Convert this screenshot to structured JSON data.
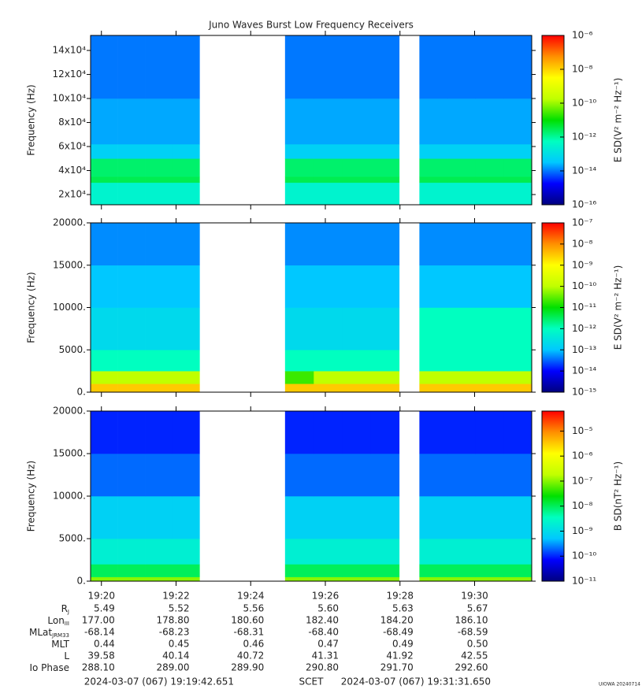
{
  "chart_data": {
    "type": "spectrogram",
    "title": "Juno Waves Burst Low Frequency Receivers",
    "colormap": [
      "#00007f",
      "#0000ff",
      "#00c8ff",
      "#00ffc0",
      "#00e000",
      "#c0ff00",
      "#ffff00",
      "#ff9000",
      "#ff0000"
    ],
    "xlim": [
      1179.71,
      1191.53
    ],
    "xticks": [
      {
        "value": 1180,
        "label": "19:20"
      },
      {
        "value": 1182,
        "label": "19:22"
      },
      {
        "value": 1184,
        "label": "19:24"
      },
      {
        "value": 1186,
        "label": "19:26"
      },
      {
        "value": 1188,
        "label": "19:28"
      },
      {
        "value": 1190,
        "label": "19:30"
      }
    ],
    "x_bins": [
      1179.71,
      1180.44,
      1181.17,
      1181.9,
      1182.63,
      1184.92,
      1185.69,
      1186.45,
      1187.22,
      1187.98,
      1188.52,
      1189.27,
      1190.02,
      1190.78,
      1191.53
    ],
    "panels": [
      {
        "ylabel": "Frequency (Hz)",
        "ylim": [
          11500,
          152500
        ],
        "yticks": [
          {
            "value": 20000,
            "label": "2x10⁴"
          },
          {
            "value": 40000,
            "label": "4x10⁴"
          },
          {
            "value": 60000,
            "label": "6x10⁴"
          },
          {
            "value": 80000,
            "label": "8x10⁴"
          },
          {
            "value": 100000,
            "label": "10x10⁴"
          },
          {
            "value": 120000,
            "label": "12x10⁴"
          },
          {
            "value": 140000,
            "label": "14x10⁴"
          }
        ],
        "y_bins": [
          11500,
          30000,
          35000,
          50000,
          62000,
          100000,
          152500
        ],
        "z": [
          [
            3e-13,
            3e-13,
            3e-13,
            3e-13,
            null,
            3e-13,
            3e-13,
            3e-13,
            3e-13,
            null,
            3e-13,
            3e-13,
            3e-13,
            3e-13
          ],
          [
            3e-12,
            3e-12,
            3e-12,
            3e-12,
            null,
            3e-12,
            3e-12,
            3e-12,
            3e-12,
            null,
            3e-12,
            3e-12,
            3e-12,
            3e-12
          ],
          [
            2e-12,
            2e-12,
            2e-12,
            2e-12,
            null,
            2e-12,
            2e-12,
            2e-12,
            2e-12,
            null,
            2e-12,
            2e-12,
            2e-12,
            2e-12
          ],
          [
            5e-14,
            5e-14,
            5e-14,
            5e-14,
            null,
            5e-14,
            5e-14,
            5e-14,
            5e-14,
            null,
            5e-14,
            5e-14,
            5e-14,
            5e-14
          ],
          [
            2e-14,
            2e-14,
            2e-14,
            2e-14,
            null,
            2e-14,
            2e-14,
            2e-14,
            2e-14,
            null,
            2e-14,
            2e-14,
            2e-14,
            2e-14
          ],
          [
            1e-14,
            1e-14,
            1e-14,
            1e-14,
            null,
            1e-14,
            1e-14,
            1e-14,
            1e-14,
            null,
            1e-14,
            1e-14,
            1e-14,
            1e-14
          ]
        ],
        "clim": [
          1e-16,
          1e-06
        ],
        "cticks": [
          {
            "value": 1e-06,
            "label": "10⁻⁶"
          },
          {
            "value": 1e-08,
            "label": "10⁻⁸"
          },
          {
            "value": 1e-10,
            "label": "10⁻¹⁰"
          },
          {
            "value": 1e-12,
            "label": "10⁻¹²"
          },
          {
            "value": 1e-14,
            "label": "10⁻¹⁴"
          },
          {
            "value": 1e-16,
            "label": "10⁻¹⁶"
          }
        ],
        "clabel": "E SD(V² m⁻² Hz⁻¹)"
      },
      {
        "ylabel": "Frequency (Hz)",
        "ylim": [
          0,
          20000
        ],
        "yticks": [
          {
            "value": 0,
            "label": "0."
          },
          {
            "value": 5000,
            "label": "5000."
          },
          {
            "value": 10000,
            "label": "10000."
          },
          {
            "value": 15000,
            "label": "15000."
          },
          {
            "value": 20000,
            "label": "20000."
          }
        ],
        "y_bins": [
          0,
          1000,
          2500,
          5000,
          10000,
          15000,
          20000
        ],
        "z": [
          [
            3e-09,
            3e-09,
            3e-09,
            3e-09,
            null,
            3e-09,
            3e-09,
            3e-09,
            3e-09,
            null,
            3e-09,
            3e-09,
            3e-09,
            3e-09
          ],
          [
            1e-10,
            1e-10,
            1e-10,
            1e-10,
            null,
            2e-11,
            1e-10,
            1e-10,
            1e-10,
            null,
            1e-10,
            1e-10,
            1e-10,
            1e-10
          ],
          [
            1e-12,
            1e-12,
            1e-12,
            1e-12,
            null,
            1e-12,
            1e-12,
            1e-12,
            1e-12,
            null,
            1e-12,
            1e-12,
            1e-12,
            1e-12
          ],
          [
            2e-13,
            2e-13,
            2e-13,
            2e-13,
            null,
            2e-13,
            2e-13,
            2e-13,
            2e-13,
            null,
            1e-12,
            1e-12,
            1e-12,
            1e-12
          ],
          [
            1e-13,
            1e-13,
            1e-13,
            1e-13,
            null,
            1e-13,
            1e-13,
            1e-13,
            1e-13,
            null,
            1e-13,
            1e-13,
            1e-13,
            1e-13
          ],
          [
            5e-14,
            5e-14,
            5e-14,
            5e-14,
            null,
            5e-14,
            5e-14,
            5e-14,
            5e-14,
            null,
            5e-14,
            5e-14,
            5e-14,
            5e-14
          ]
        ],
        "clim": [
          1e-15,
          1e-07
        ],
        "cticks": [
          {
            "value": 1e-07,
            "label": "10⁻⁷"
          },
          {
            "value": 1e-08,
            "label": "10⁻⁸"
          },
          {
            "value": 1e-09,
            "label": "10⁻⁹"
          },
          {
            "value": 1e-10,
            "label": "10⁻¹⁰"
          },
          {
            "value": 1e-11,
            "label": "10⁻¹¹"
          },
          {
            "value": 1e-12,
            "label": "10⁻¹²"
          },
          {
            "value": 1e-13,
            "label": "10⁻¹³"
          },
          {
            "value": 1e-14,
            "label": "10⁻¹⁴"
          },
          {
            "value": 1e-15,
            "label": "10⁻¹⁵"
          }
        ],
        "clabel": "E SD(V² m⁻² Hz⁻¹)"
      },
      {
        "ylabel": "Frequency (Hz)",
        "ylim": [
          0,
          20000
        ],
        "yticks": [
          {
            "value": 0,
            "label": "0."
          },
          {
            "value": 5000,
            "label": "5000."
          },
          {
            "value": 10000,
            "label": "10000."
          },
          {
            "value": 15000,
            "label": "15000."
          },
          {
            "value": 20000,
            "label": "20000."
          }
        ],
        "y_bins": [
          0,
          500,
          2000,
          5000,
          10000,
          15000,
          20000
        ],
        "z": [
          [
            1e-07,
            1e-07,
            1e-07,
            1e-07,
            null,
            1e-07,
            1e-07,
            1e-07,
            1e-07,
            null,
            1e-07,
            1e-07,
            1e-07,
            1e-07
          ],
          [
            1e-08,
            1e-08,
            1e-08,
            1e-08,
            null,
            1e-08,
            1e-08,
            1e-08,
            1e-08,
            null,
            1e-08,
            1e-08,
            1e-08,
            1e-08
          ],
          [
            2e-09,
            2e-09,
            2e-09,
            2e-09,
            null,
            2e-09,
            2e-09,
            2e-09,
            2e-09,
            null,
            2e-09,
            2e-09,
            2e-09,
            2e-09
          ],
          [
            7e-10,
            7e-10,
            7e-10,
            7e-10,
            null,
            7e-10,
            7e-10,
            7e-10,
            7e-10,
            null,
            7e-10,
            7e-10,
            7e-10,
            7e-10
          ],
          [
            2e-10,
            2e-10,
            2e-10,
            2e-10,
            null,
            2e-10,
            2e-10,
            2e-10,
            2e-10,
            null,
            2e-10,
            2e-10,
            2e-10,
            2e-10
          ],
          [
            1e-10,
            1e-10,
            1e-10,
            1e-10,
            null,
            1e-10,
            1e-10,
            1e-10,
            1e-10,
            null,
            1e-10,
            1e-10,
            1e-10,
            1e-10
          ]
        ],
        "clim": [
          1e-11,
          6.3e-05
        ],
        "cticks": [
          {
            "value": 1e-05,
            "label": "10⁻⁵"
          },
          {
            "value": 1e-06,
            "label": "10⁻⁶"
          },
          {
            "value": 1e-07,
            "label": "10⁻⁷"
          },
          {
            "value": 1e-08,
            "label": "10⁻⁸"
          },
          {
            "value": 1e-09,
            "label": "10⁻⁹"
          },
          {
            "value": 1e-10,
            "label": "10⁻¹⁰"
          },
          {
            "value": 1e-11,
            "label": "10⁻¹¹"
          }
        ],
        "clabel": "B SD(nT² Hz⁻¹)"
      }
    ],
    "ephemeris": [
      {
        "label": "R",
        "sub": "J",
        "values": [
          "5.49",
          "5.52",
          "5.56",
          "5.60",
          "5.63",
          "5.67"
        ]
      },
      {
        "label": "Lon",
        "sub": "III",
        "values": [
          "177.00",
          "178.80",
          "180.60",
          "182.40",
          "184.20",
          "186.10"
        ]
      },
      {
        "label": "MLat",
        "sub": "JRM33",
        "values": [
          "-68.14",
          "-68.23",
          "-68.31",
          "-68.40",
          "-68.49",
          "-68.59"
        ]
      },
      {
        "label": "MLT",
        "values": [
          "0.44",
          "0.45",
          "0.46",
          "0.47",
          "0.49",
          "0.50"
        ]
      },
      {
        "label": "L",
        "values": [
          "39.58",
          "40.14",
          "40.72",
          "41.31",
          "41.92",
          "42.55"
        ]
      },
      {
        "label": "Io Phase",
        "values": [
          "288.10",
          "289.00",
          "289.90",
          "290.80",
          "291.70",
          "292.60"
        ]
      }
    ],
    "start_time": "2024-03-07 (067) 19:19:42.651",
    "time_label": "SCET",
    "end_time": "2024-03-07 (067) 19:31:31.650",
    "credit": "UIOWA 20240714"
  }
}
